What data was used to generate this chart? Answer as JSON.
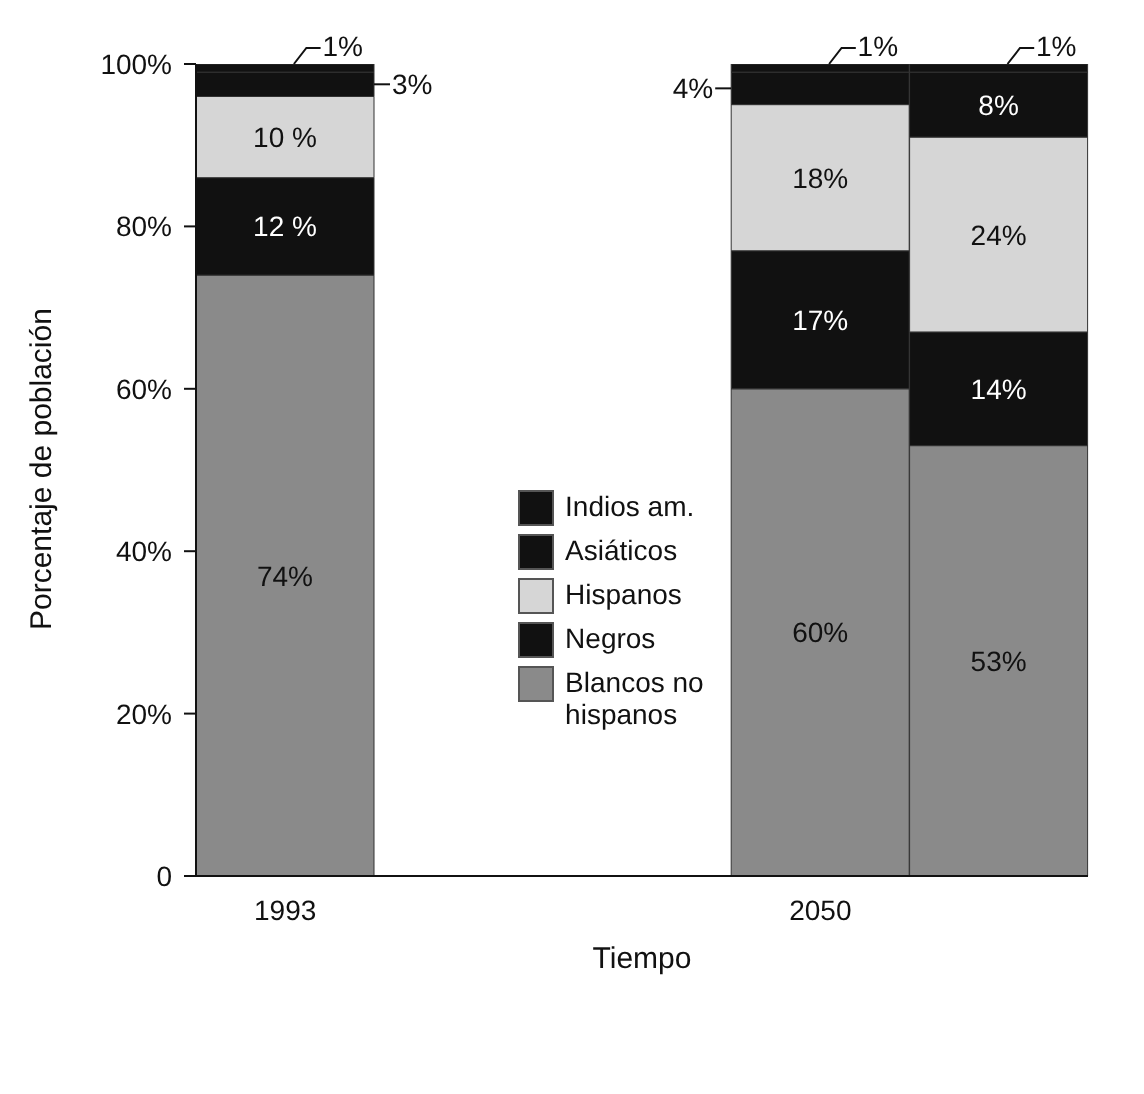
{
  "chart_data": {
    "type": "bar",
    "stacked": true,
    "xlabel": "Tiempo",
    "ylabel": "Porcentaje de población",
    "categories": [
      "1993",
      null,
      null,
      "2050",
      null
    ],
    "series": [
      {
        "name": "Blancos no hispanos",
        "color": "#8a8a8a",
        "values": [
          74,
          null,
          null,
          60,
          53
        ],
        "value_labels": [
          "74%",
          null,
          null,
          "60%",
          "53%"
        ]
      },
      {
        "name": "Negros",
        "color": "#111111",
        "values": [
          12,
          null,
          null,
          17,
          14
        ],
        "value_labels": [
          "12 %",
          null,
          null,
          "17%",
          "14%"
        ]
      },
      {
        "name": "Hispanos",
        "color": "#d6d6d6",
        "values": [
          10,
          null,
          null,
          18,
          24
        ],
        "value_labels": [
          "10 %",
          null,
          null,
          "18%",
          "24%"
        ]
      },
      {
        "name": "Asiáticos",
        "color": "#111111",
        "values": [
          3,
          null,
          null,
          4,
          8
        ],
        "value_labels": [
          "3%",
          null,
          null,
          "4%",
          "8%"
        ]
      },
      {
        "name": "Indios am.",
        "color": "#111111",
        "values": [
          1,
          null,
          null,
          1,
          1
        ],
        "value_labels": [
          "1%",
          null,
          null,
          "1%",
          "1%"
        ]
      }
    ],
    "ylim": [
      0,
      100
    ],
    "yticks": [
      0,
      {
        "value": 20,
        "label": "20%"
      },
      {
        "value": 40,
        "label": "40%"
      },
      {
        "value": 60,
        "label": "60%"
      },
      {
        "value": 80,
        "label": "80%"
      },
      {
        "value": 100,
        "label": "100%"
      }
    ],
    "grid": false,
    "legend": "center"
  }
}
